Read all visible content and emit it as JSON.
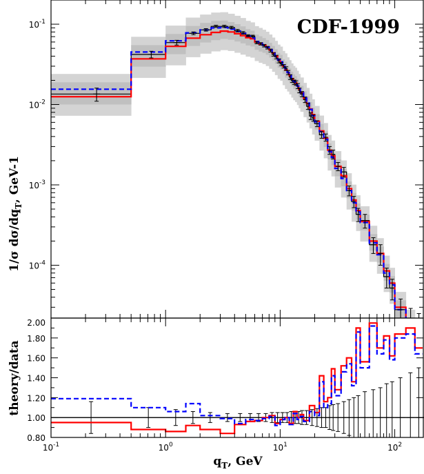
{
  "chart_data": [
    {
      "type": "line",
      "title": "CDF-1999",
      "ylabel_main": "1/σ dσ/dq",
      "ylabel_sub": "T",
      "ylabel_unit": ",  GeV-1",
      "xscale": "log",
      "yscale": "log",
      "xlim": [
        0.1,
        180
      ],
      "ylim": [
        2.2e-05,
        0.2
      ],
      "x_ticks": [
        {
          "v": 0.1,
          "base": "10",
          "exp": "-1"
        },
        {
          "v": 1,
          "base": "10",
          "exp": "0"
        },
        {
          "v": 10,
          "base": "10",
          "exp": "1"
        },
        {
          "v": 100,
          "base": "10",
          "exp": "2"
        }
      ],
      "y_ticks": [
        {
          "v": 0.1,
          "base": "10",
          "exp": "-1"
        },
        {
          "v": 0.01,
          "base": "10",
          "exp": "-2"
        },
        {
          "v": 0.001,
          "base": "10",
          "exp": "-3"
        },
        {
          "v": 0.0001,
          "base": "10",
          "exp": "-4"
        }
      ],
      "colors": {
        "band_outer": "#d4d4d4",
        "band_inner": "#c0c0c0",
        "red": "#ff0000",
        "blue": "#0000ff",
        "black": "#000000"
      },
      "bin_edges": [
        0.1,
        0.5,
        1,
        1.5,
        2,
        2.5,
        3,
        3.5,
        4,
        4.5,
        5,
        5.5,
        6,
        6.5,
        7,
        7.5,
        8,
        8.5,
        9,
        9.5,
        10,
        10.5,
        11,
        11.5,
        12,
        12.5,
        13,
        13.5,
        14,
        14.5,
        15,
        16,
        17,
        18,
        19,
        20,
        22,
        24,
        26,
        28,
        30,
        34,
        38,
        42,
        46,
        50,
        60,
        70,
        80,
        90,
        100,
        125,
        150,
        175
      ],
      "data_x": [
        0.25,
        0.75,
        1.25,
        1.75,
        2.25,
        2.75,
        3.25,
        3.75,
        4.25,
        4.75,
        5.25,
        5.75,
        6.25,
        6.75,
        7.25,
        7.75,
        8.25,
        8.75,
        9.25,
        9.75,
        10.25,
        10.75,
        11.25,
        11.75,
        12.25,
        12.75,
        13.25,
        13.75,
        14.25,
        14.75,
        15.5,
        16.5,
        17.5,
        18.5,
        19.5,
        21,
        23,
        25,
        27,
        29,
        32,
        36,
        40,
        44,
        48,
        55,
        65,
        75,
        85,
        95,
        112.5,
        137.5,
        162.5
      ],
      "data_y": [
        0.0135,
        0.042,
        0.059,
        0.077,
        0.085,
        0.094,
        0.094,
        0.091,
        0.083,
        0.078,
        0.072,
        0.071,
        0.059,
        0.057,
        0.054,
        0.051,
        0.047,
        0.042,
        0.039,
        0.035,
        0.032,
        0.03,
        0.028,
        0.025,
        0.022,
        0.02,
        0.019,
        0.0185,
        0.017,
        0.015,
        0.0135,
        0.0115,
        0.0095,
        0.0072,
        0.0068,
        0.0058,
        0.0042,
        0.0039,
        0.0027,
        0.0024,
        0.0017,
        0.00145,
        0.00085,
        0.00062,
        0.00043,
        0.00036,
        0.00018,
        0.00014,
        7.2e-05,
        5.2e-05,
        2.8e-05,
        2.1e-05,
        1.8e-05
      ],
      "data_err": [
        0.0025,
        0.004,
        0.004,
        0.003,
        0.003,
        0.003,
        0.003,
        0.003,
        0.003,
        0.003,
        0.002,
        0.002,
        0.002,
        0.002,
        0.002,
        0.002,
        0.002,
        0.002,
        0.002,
        0.002,
        0.0015,
        0.0015,
        0.0015,
        0.0015,
        0.0015,
        0.0012,
        0.0012,
        0.0012,
        0.0012,
        0.001,
        0.001,
        0.0009,
        0.0008,
        0.0007,
        0.0006,
        0.0005,
        0.0004,
        0.0004,
        0.0003,
        0.0003,
        0.0002,
        0.0002,
        0.00012,
        0.0001,
        8e-05,
        7e-05,
        4e-05,
        4e-05,
        2e-05,
        1.5e-05,
        1e-05,
        8e-06,
        7e-06
      ],
      "red": [
        0.0125,
        0.037,
        0.053,
        0.067,
        0.074,
        0.079,
        0.082,
        0.08,
        0.076,
        0.072,
        0.068,
        0.066,
        0.06,
        0.057,
        0.055,
        0.052,
        0.048,
        0.044,
        0.04,
        0.036,
        0.034,
        0.03,
        0.027,
        0.025,
        0.023,
        0.021,
        0.0195,
        0.0185,
        0.017,
        0.0155,
        0.014,
        0.012,
        0.0103,
        0.0088,
        0.0075,
        0.0062,
        0.0047,
        0.0038,
        0.0027,
        0.0023,
        0.0017,
        0.0013,
        0.0009,
        0.00065,
        0.00048,
        0.00035,
        0.0002,
        0.00014,
        8.5e-05,
        6e-05,
        3e-05,
        1.8e-05,
        1.2e-05
      ],
      "blue": [
        0.0155,
        0.045,
        0.062,
        0.078,
        0.085,
        0.09,
        0.091,
        0.087,
        0.082,
        0.077,
        0.071,
        0.068,
        0.061,
        0.058,
        0.055,
        0.052,
        0.048,
        0.044,
        0.04,
        0.036,
        0.034,
        0.03,
        0.028,
        0.025,
        0.023,
        0.021,
        0.0195,
        0.0185,
        0.017,
        0.0155,
        0.014,
        0.012,
        0.0104,
        0.0087,
        0.0073,
        0.0061,
        0.0046,
        0.0037,
        0.0026,
        0.0022,
        0.0016,
        0.0012,
        0.00085,
        0.0006,
        0.00046,
        0.00034,
        0.00019,
        0.000135,
        8e-05,
        5.7e-05,
        2.8e-05,
        1.7e-05,
        1.1e-05
      ]
    },
    {
      "type": "line",
      "ylabel": "theory/data",
      "xlabel_main": "q",
      "xlabel_sub": "T",
      "xlabel_unit": ", GeV",
      "xscale": "log",
      "xlim": [
        0.1,
        180
      ],
      "ylim": [
        0.8,
        2.0
      ],
      "y_ticks": [
        "0.80",
        "1.00",
        "1.20",
        "1.40",
        "1.60",
        "1.80",
        "2.00"
      ],
      "reference_line": 1.0,
      "bin_edges": [
        0.1,
        0.5,
        1,
        1.5,
        2,
        3,
        4,
        5,
        6,
        7,
        8,
        9,
        10,
        11,
        12,
        13,
        14,
        15,
        16,
        18,
        20,
        22,
        24,
        26,
        28,
        30,
        34,
        38,
        42,
        46,
        50,
        60,
        70,
        80,
        90,
        100,
        125,
        150,
        175
      ],
      "red": [
        0.95,
        0.88,
        0.86,
        0.92,
        0.88,
        0.84,
        0.93,
        0.96,
        0.97,
        1.0,
        1.02,
        0.94,
        0.98,
        1.0,
        0.94,
        1.06,
        1.0,
        1.03,
        0.97,
        1.12,
        1.05,
        1.42,
        1.16,
        1.2,
        1.49,
        1.28,
        1.52,
        1.6,
        1.36,
        1.9,
        1.56,
        1.95,
        1.7,
        1.82,
        1.62,
        1.84,
        1.9,
        1.7
      ],
      "blue": [
        1.19,
        1.1,
        1.06,
        1.14,
        1.02,
        0.99,
        0.94,
        0.98,
        0.97,
        0.99,
        1.01,
        0.92,
        0.98,
        1.0,
        0.93,
        1.04,
        0.98,
        1.01,
        0.96,
        1.06,
        1.02,
        1.36,
        1.1,
        1.14,
        1.42,
        1.22,
        1.46,
        1.54,
        1.32,
        1.86,
        1.5,
        1.92,
        1.64,
        1.78,
        1.58,
        1.8,
        1.84,
        1.64
      ],
      "err": [
        0.16,
        0.1,
        0.08,
        0.06,
        0.05,
        0.04,
        0.04,
        0.04,
        0.04,
        0.04,
        0.05,
        0.05,
        0.05,
        0.05,
        0.06,
        0.06,
        0.06,
        0.07,
        0.07,
        0.08,
        0.09,
        0.1,
        0.1,
        0.12,
        0.13,
        0.14,
        0.16,
        0.18,
        0.2,
        0.22,
        0.26,
        0.28,
        0.3,
        0.34,
        0.36,
        0.4,
        0.45,
        0.5
      ]
    }
  ]
}
